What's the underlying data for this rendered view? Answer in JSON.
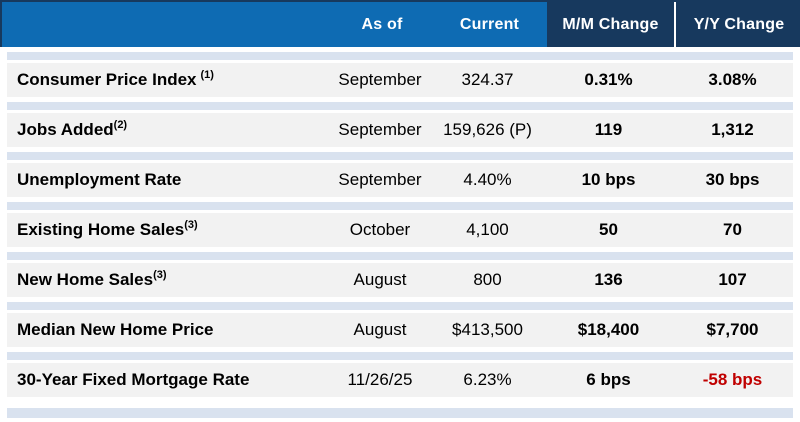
{
  "header": {
    "columns": [
      "",
      "As of",
      "Current",
      "M/M Change",
      "Y/Y Change"
    ]
  },
  "rows": [
    {
      "label": "Consumer Price Index",
      "sup": "(1)",
      "sup_gap": true,
      "as_of": "September",
      "current": "324.37",
      "mm": "0.31%",
      "yy": "3.08%"
    },
    {
      "label": "Jobs Added",
      "sup": "(2)",
      "sup_gap": false,
      "as_of": "September",
      "current": "159,626 (P)",
      "mm": "119",
      "yy": "1,312"
    },
    {
      "label": "Unemployment Rate",
      "sup": "",
      "sup_gap": false,
      "as_of": "September",
      "current": "4.40%",
      "mm": "10 bps",
      "yy": "30 bps"
    },
    {
      "label": "Existing Home Sales",
      "sup": "(3)",
      "sup_gap": false,
      "as_of": "October",
      "current": "4,100",
      "mm": "50",
      "yy": "70"
    },
    {
      "label": "New Home Sales",
      "sup": "(3)",
      "sup_gap": false,
      "as_of": "August",
      "current": "800",
      "mm": "136",
      "yy": "107"
    },
    {
      "label": "Median New Home Price",
      "sup": "",
      "sup_gap": false,
      "as_of": "August",
      "current": "$413,500",
      "mm": "$18,400",
      "yy": "$7,700"
    },
    {
      "label": "30-Year Fixed Mortgage Rate",
      "sup": "",
      "sup_gap": false,
      "as_of": "11/26/25",
      "current": "6.23%",
      "mm": "6 bps",
      "yy": "-58 bps",
      "yy_color": "#C00000"
    }
  ],
  "colors": {
    "header_blue": "#0E6BB3",
    "header_navy": "#17395E",
    "separator_band": "#D9E2EF",
    "row_background": "#F2F2F2",
    "negative_value_red": "#C00000"
  }
}
